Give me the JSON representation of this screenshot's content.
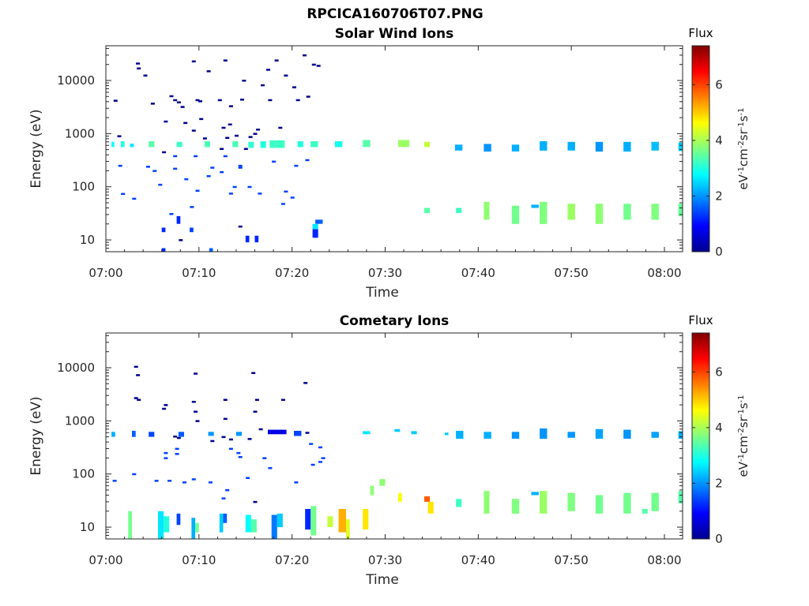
{
  "figure": {
    "title": "RPCICA160706T07.PNG"
  },
  "colorscale": {
    "stops": [
      "#00008f",
      "#0000ff",
      "#0080ff",
      "#00ffff",
      "#80ff80",
      "#ffff00",
      "#ff8000",
      "#ff0000",
      "#800000"
    ]
  },
  "chart_data": [
    {
      "type": "heatmap",
      "title": "Solar Wind Ions",
      "xlabel": "Time",
      "ylabel": "Energy (eV)",
      "x_ticks": [
        "07:00",
        "07:10",
        "07:20",
        "07:30",
        "07:40",
        "07:50",
        "08:00"
      ],
      "y_ticks": [
        {
          "value": 10,
          "label": "10"
        },
        {
          "value": 100,
          "label": "100"
        },
        {
          "value": 1000,
          "label": "1000"
        },
        {
          "value": 10000,
          "label": "10000"
        }
      ],
      "xlim_minutes_after_0700": [
        0,
        62
      ],
      "ylim": [
        6,
        45000
      ],
      "yscale": "log",
      "colorbar": {
        "label": "Flux",
        "unit_label": "eV-1cm-2sr-1s-1",
        "range": [
          0,
          7.4
        ],
        "ticks": [
          0,
          2,
          4,
          6
        ]
      },
      "cells": [
        [
          0.6,
          0.9,
          560,
          700,
          2.8
        ],
        [
          1.6,
          2.0,
          560,
          720,
          3.0
        ],
        [
          2.6,
          3.0,
          560,
          650,
          2.6
        ],
        [
          4.6,
          5.2,
          560,
          720,
          3.4
        ],
        [
          7.6,
          8.2,
          560,
          700,
          3.2
        ],
        [
          10.6,
          11.2,
          560,
          720,
          3.3
        ],
        [
          13.6,
          14.2,
          560,
          720,
          3.3
        ],
        [
          15.3,
          15.9,
          540,
          700,
          3.1
        ],
        [
          16.6,
          17.2,
          540,
          720,
          3.0
        ],
        [
          17.6,
          19.2,
          540,
          750,
          3.2
        ],
        [
          20.6,
          21.2,
          560,
          720,
          3.0
        ],
        [
          22.0,
          22.8,
          560,
          720,
          3.2
        ],
        [
          24.6,
          25.4,
          560,
          720,
          2.9
        ],
        [
          27.6,
          28.4,
          560,
          760,
          3.4
        ],
        [
          31.4,
          32.6,
          560,
          760,
          3.9
        ],
        [
          34.2,
          34.8,
          560,
          700,
          4.2
        ],
        [
          37.5,
          38.3,
          480,
          620,
          2.2
        ],
        [
          40.6,
          41.4,
          460,
          640,
          2.0
        ],
        [
          43.6,
          44.4,
          460,
          620,
          2.2
        ],
        [
          46.6,
          47.4,
          480,
          720,
          2.2
        ],
        [
          49.6,
          50.4,
          480,
          700,
          2.2
        ],
        [
          52.6,
          53.4,
          460,
          700,
          2.0
        ],
        [
          55.6,
          56.4,
          460,
          700,
          2.2
        ],
        [
          58.6,
          59.4,
          480,
          700,
          2.3
        ],
        [
          61.5,
          62.0,
          470,
          680,
          2.4
        ],
        [
          34.2,
          34.8,
          32,
          40,
          3.4
        ],
        [
          37.6,
          38.2,
          32,
          40,
          3.2
        ],
        [
          40.6,
          41.2,
          24,
          52,
          3.8
        ],
        [
          43.6,
          44.4,
          20,
          44,
          3.6
        ],
        [
          46.6,
          47.4,
          20,
          52,
          3.7
        ],
        [
          49.6,
          50.4,
          24,
          48,
          3.9
        ],
        [
          52.6,
          53.4,
          20,
          48,
          3.8
        ],
        [
          55.6,
          56.4,
          24,
          48,
          3.6
        ],
        [
          58.6,
          59.4,
          24,
          48,
          3.7
        ],
        [
          61.5,
          62.0,
          28,
          48,
          3.5
        ],
        [
          45.7,
          46.5,
          40,
          46,
          2.2
        ],
        [
          22.2,
          22.8,
          11,
          16,
          1.2
        ],
        [
          22.2,
          22.8,
          16,
          20,
          2.6
        ],
        [
          22.5,
          23.3,
          20,
          24,
          1.6
        ],
        [
          15.0,
          15.4,
          9,
          12,
          1.2
        ],
        [
          16.0,
          16.4,
          9,
          12,
          1.2
        ],
        [
          6.0,
          6.4,
          6,
          7,
          1.2
        ],
        [
          6.0,
          6.4,
          14,
          17,
          1.2
        ],
        [
          7.6,
          8.0,
          20,
          28,
          1.2
        ],
        [
          9.0,
          9.4,
          14,
          17,
          1.4
        ],
        [
          11.1,
          11.5,
          6,
          7,
          1.6
        ],
        [
          11.8,
          12.2,
          0,
          0,
          0
        ]
      ],
      "sparse_points": [
        [
          1.0,
          4200
        ],
        [
          1.4,
          900
        ],
        [
          1.5,
          250
        ],
        [
          1.8,
          74
        ],
        [
          3.4,
          21000
        ],
        [
          3.5,
          17000
        ],
        [
          4.2,
          12500
        ],
        [
          5.0,
          3700
        ],
        [
          4.5,
          240
        ],
        [
          5.2,
          200
        ],
        [
          6.4,
          1700
        ],
        [
          7.0,
          5100
        ],
        [
          7.4,
          4300
        ],
        [
          7.8,
          3900
        ],
        [
          8.2,
          3200
        ],
        [
          8.5,
          1600
        ],
        [
          9.4,
          23000
        ],
        [
          9.4,
          1150
        ],
        [
          9.8,
          4300
        ],
        [
          10.1,
          4100
        ],
        [
          10.6,
          820
        ],
        [
          10.2,
          1900
        ],
        [
          11.0,
          15000
        ],
        [
          12.2,
          4300
        ],
        [
          12.6,
          1300
        ],
        [
          12.8,
          24000
        ],
        [
          13.4,
          3300
        ],
        [
          13.0,
          840
        ],
        [
          13.3,
          1500
        ],
        [
          14.0,
          920
        ],
        [
          14.6,
          4400
        ],
        [
          14.8,
          10000
        ],
        [
          15.0,
          520
        ],
        [
          15.5,
          870
        ],
        [
          16.0,
          1000
        ],
        [
          16.3,
          1200
        ],
        [
          16.8,
          8200
        ],
        [
          17.4,
          16000
        ],
        [
          17.6,
          4300
        ],
        [
          18.3,
          24000
        ],
        [
          18.7,
          1300
        ],
        [
          19.3,
          12500
        ],
        [
          20.2,
          7500
        ],
        [
          20.6,
          4300
        ],
        [
          21.3,
          30000
        ],
        [
          21.7,
          5000
        ],
        [
          22.3,
          20000
        ],
        [
          22.8,
          19000
        ],
        [
          3.0,
          60
        ],
        [
          5.8,
          110
        ],
        [
          7.4,
          220
        ],
        [
          8.6,
          140
        ],
        [
          9.2,
          42
        ],
        [
          9.8,
          85
        ],
        [
          11.0,
          160
        ],
        [
          11.4,
          230
        ],
        [
          13.4,
          75
        ],
        [
          13.8,
          100
        ],
        [
          14.4,
          230
        ],
        [
          15.4,
          100
        ],
        [
          16.5,
          75
        ],
        [
          19.0,
          48
        ],
        [
          19.3,
          82
        ],
        [
          20.0,
          63
        ],
        [
          20.4,
          250
        ],
        [
          21.6,
          320
        ],
        [
          7.0,
          31
        ],
        [
          8.0,
          10
        ],
        [
          12.4,
          190
        ],
        [
          14.4,
          18
        ],
        [
          18.0,
          300
        ],
        [
          6.2,
          450
        ],
        [
          7.4,
          380
        ],
        [
          9.6,
          380
        ],
        [
          12.4,
          520
        ],
        [
          12.8,
          380
        ],
        [
          14.4,
          250
        ]
      ]
    },
    {
      "type": "heatmap",
      "title": "Cometary Ions",
      "xlabel": "Time",
      "ylabel": "Energy (eV)",
      "x_ticks": [
        "07:00",
        "07:10",
        "07:20",
        "07:30",
        "07:40",
        "07:50",
        "08:00"
      ],
      "y_ticks": [
        {
          "value": 10,
          "label": "10"
        },
        {
          "value": 100,
          "label": "100"
        },
        {
          "value": 1000,
          "label": "1000"
        },
        {
          "value": 10000,
          "label": "10000"
        }
      ],
      "xlim_minutes_after_0700": [
        0,
        62
      ],
      "ylim": [
        6,
        45000
      ],
      "yscale": "log",
      "colorbar": {
        "label": "Flux",
        "unit_label": "eV-1cm-2sr-1s-1",
        "range": [
          0,
          7.4
        ],
        "ticks": [
          0,
          2,
          4,
          6
        ]
      },
      "cells": [
        [
          0.6,
          1.0,
          500,
          620,
          2.2
        ],
        [
          2.8,
          3.2,
          500,
          650,
          1.6
        ],
        [
          4.6,
          5.2,
          500,
          620,
          1.4
        ],
        [
          7.8,
          8.4,
          500,
          620,
          1.6
        ],
        [
          11.0,
          11.6,
          520,
          620,
          2.0
        ],
        [
          14.0,
          14.6,
          520,
          620,
          2.0
        ],
        [
          17.4,
          19.4,
          560,
          680,
          0.7
        ],
        [
          20.2,
          21.0,
          520,
          650,
          1.4
        ],
        [
          27.6,
          28.4,
          560,
          640,
          2.6
        ],
        [
          31.0,
          31.6,
          620,
          700,
          2.4
        ],
        [
          32.8,
          33.4,
          560,
          640,
          2.4
        ],
        [
          36.4,
          36.8,
          540,
          600,
          2.4
        ],
        [
          37.6,
          38.4,
          460,
          650,
          2.2
        ],
        [
          40.6,
          41.4,
          460,
          620,
          2.2
        ],
        [
          43.6,
          44.4,
          460,
          620,
          2.0
        ],
        [
          46.6,
          47.4,
          460,
          720,
          2.0
        ],
        [
          49.6,
          50.4,
          480,
          620,
          2.0
        ],
        [
          52.6,
          53.4,
          460,
          700,
          2.1
        ],
        [
          55.6,
          56.4,
          460,
          680,
          2.0
        ],
        [
          58.6,
          59.4,
          480,
          620,
          2.1
        ],
        [
          61.5,
          62.0,
          460,
          640,
          2.2
        ],
        [
          28.4,
          28.8,
          40,
          60,
          3.8
        ],
        [
          29.4,
          30.0,
          60,
          80,
          3.8
        ],
        [
          31.4,
          31.8,
          30,
          44,
          4.6
        ],
        [
          34.2,
          34.8,
          30,
          38,
          5.8
        ],
        [
          34.6,
          35.2,
          18,
          30,
          4.8
        ],
        [
          37.6,
          38.2,
          24,
          34,
          3.2
        ],
        [
          40.6,
          41.2,
          18,
          48,
          3.8
        ],
        [
          43.6,
          44.4,
          18,
          34,
          3.7
        ],
        [
          46.6,
          47.4,
          18,
          48,
          3.9
        ],
        [
          49.6,
          50.4,
          20,
          44,
          3.7
        ],
        [
          52.6,
          53.4,
          18,
          40,
          3.6
        ],
        [
          55.6,
          56.4,
          18,
          44,
          3.6
        ],
        [
          57.6,
          58.2,
          18,
          22,
          3.4
        ],
        [
          58.6,
          59.4,
          20,
          44,
          3.6
        ],
        [
          61.5,
          62.0,
          28,
          48,
          3.4
        ],
        [
          45.7,
          46.5,
          40,
          46,
          2.2
        ],
        [
          2.4,
          2.8,
          6,
          20,
          3.6
        ],
        [
          5.6,
          6.2,
          6,
          20,
          2.6
        ],
        [
          6.2,
          6.8,
          8,
          16,
          3.0
        ],
        [
          7.6,
          8.0,
          11,
          18,
          1.4
        ],
        [
          9.2,
          9.6,
          6,
          15,
          2.2
        ],
        [
          9.6,
          10.0,
          8,
          12,
          3.6
        ],
        [
          12.2,
          12.6,
          8,
          18,
          2.4
        ],
        [
          12.6,
          13.0,
          12,
          18,
          1.6
        ],
        [
          15.0,
          15.6,
          8,
          17,
          2.8
        ],
        [
          15.6,
          16.2,
          8,
          14,
          3.4
        ],
        [
          17.8,
          18.4,
          6,
          17,
          1.8
        ],
        [
          18.4,
          19.0,
          10,
          18,
          2.4
        ],
        [
          21.4,
          22.0,
          9,
          22,
          1.2
        ],
        [
          22.0,
          22.6,
          7,
          25,
          3.6
        ],
        [
          25.0,
          25.8,
          8,
          22,
          5.2
        ],
        [
          25.8,
          26.2,
          6,
          14,
          4.4
        ],
        [
          27.6,
          28.2,
          9,
          22,
          4.8
        ],
        [
          23.8,
          24.4,
          10,
          16,
          4.2
        ]
      ],
      "sparse_points": [
        [
          3.2,
          10500
        ],
        [
          3.4,
          7300
        ],
        [
          3.2,
          2700
        ],
        [
          3.5,
          2500
        ],
        [
          6.4,
          2000
        ],
        [
          6.2,
          1700
        ],
        [
          7.8,
          480
        ],
        [
          7.6,
          300
        ],
        [
          7.6,
          240
        ],
        [
          9.6,
          7800
        ],
        [
          9.4,
          2300
        ],
        [
          9.6,
          1500
        ],
        [
          9.8,
          1000
        ],
        [
          12.8,
          1100
        ],
        [
          12.8,
          2500
        ],
        [
          12.6,
          500
        ],
        [
          13.4,
          300
        ],
        [
          15.8,
          8000
        ],
        [
          16.0,
          1500
        ],
        [
          16.2,
          2500
        ],
        [
          16.6,
          700
        ],
        [
          19.0,
          2500
        ],
        [
          21.4,
          5200
        ],
        [
          21.6,
          600
        ],
        [
          22.0,
          370
        ],
        [
          23.0,
          320
        ],
        [
          23.3,
          200
        ],
        [
          23.0,
          170
        ],
        [
          0.9,
          75
        ],
        [
          3.0,
          100
        ],
        [
          5.4,
          75
        ],
        [
          6.8,
          75
        ],
        [
          8.4,
          70
        ],
        [
          9.4,
          80
        ],
        [
          11.2,
          70
        ],
        [
          12.6,
          35
        ],
        [
          13.0,
          50
        ],
        [
          14.4,
          210
        ],
        [
          15.2,
          85
        ],
        [
          16.0,
          30
        ],
        [
          17.0,
          200
        ],
        [
          20.4,
          70
        ],
        [
          22.2,
          150
        ],
        [
          7.4,
          510
        ],
        [
          11.4,
          420
        ],
        [
          13.4,
          450
        ],
        [
          15.4,
          460
        ],
        [
          14.2,
          250
        ],
        [
          17.6,
          130
        ],
        [
          6.4,
          200
        ],
        [
          6.4,
          250
        ]
      ]
    }
  ]
}
